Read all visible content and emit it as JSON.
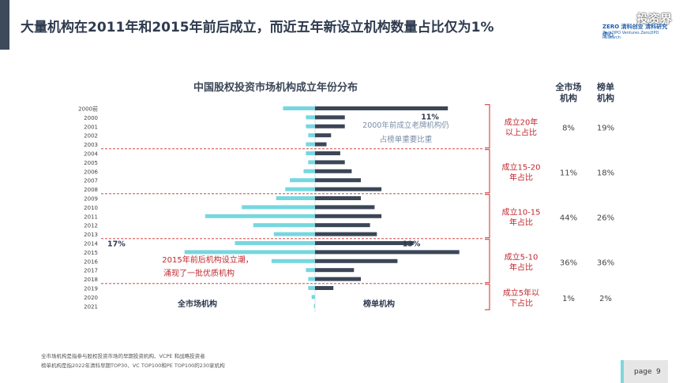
{
  "slide": {
    "title": "大量机构在2011年和2015年前后成立，而近五年新设立机构数量占比仅为1%",
    "page_label": "page",
    "page_number": "9",
    "watermark": "投资界",
    "logo_line1": "ZERO 清科创业 清科研究中心",
    "logo_line2": "Zero2IPO Ventures  Zero2IPO Research"
  },
  "colors": {
    "left_series": "#76d7df",
    "right_series": "#3b4656",
    "divider": "#cc2a2a",
    "group_text": "#c1272d",
    "annotation_blue": "#7b8ea6",
    "annotation_red": "#c1272d"
  },
  "chart_data": {
    "type": "bar",
    "orientation": "horizontal-diverging",
    "title": "中国股权投资市场机构成立年份分布",
    "categories": [
      "2000前",
      "2000",
      "2001",
      "2002",
      "2003",
      "2004",
      "2005",
      "2006",
      "2007",
      "2008",
      "2009",
      "2010",
      "2011",
      "2012",
      "2013",
      "2014",
      "2015",
      "2016",
      "2017",
      "2018",
      "2019",
      "2020",
      "2021"
    ],
    "series": [
      {
        "name": "全市场机构",
        "side": "left",
        "values": [
          1.4,
          0.4,
          0.4,
          0.3,
          0.4,
          0.4,
          0.3,
          0.5,
          1.1,
          1.3,
          1.7,
          3.2,
          4.8,
          2.7,
          1.8,
          3.5,
          5.7,
          1.9,
          0.4,
          0.3,
          0.3,
          0.15,
          0.05
        ]
      },
      {
        "name": "榜单机构",
        "side": "right",
        "values": [
          5.8,
          1.3,
          1.3,
          0.7,
          0.5,
          1.1,
          1.3,
          1.6,
          2.0,
          2.9,
          2.0,
          2.6,
          2.9,
          2.4,
          2.7,
          4.3,
          6.3,
          3.6,
          1.7,
          2.0,
          0.8,
          0.0,
          0.0
        ]
      }
    ],
    "bar_labels": [
      {
        "category": "2000前",
        "series": "榜单机构",
        "text": "11%"
      },
      {
        "category": "2014",
        "series": "全市场机构",
        "text": "17%"
      },
      {
        "category": "2014",
        "series": "榜单机构",
        "text": "13%"
      }
    ],
    "groups": [
      {
        "label_line1": "成立20年",
        "label_line2": "以上占比",
        "from": "2000前",
        "to": "2003",
        "market": "8%",
        "list": "19%"
      },
      {
        "label_line1": "成立15-20",
        "label_line2": "年占比",
        "from": "2004",
        "to": "2008",
        "market": "11%",
        "list": "18%"
      },
      {
        "label_line1": "成立10-15",
        "label_line2": "年占比",
        "from": "2009",
        "to": "2013",
        "market": "44%",
        "list": "26%"
      },
      {
        "label_line1": "成立5-10",
        "label_line2": "年占比",
        "from": "2014",
        "to": "2018",
        "market": "36%",
        "list": "36%"
      },
      {
        "label_line1": "成立5年以",
        "label_line2": "下占比",
        "from": "2019",
        "to": "2021",
        "market": "1%",
        "list": "2%"
      }
    ],
    "column_headers": {
      "market": [
        "全市场",
        "机构"
      ],
      "list": [
        "榜单",
        "机构"
      ]
    },
    "annotations": {
      "old_line1": "2000年前成立老牌机构仍",
      "old_line2": "占榜单重要比重",
      "wave_line1": "2015年前后机构设立潮，",
      "wave_line2": "涌现了一批优质机构"
    },
    "axis_labels": {
      "left": "全市场机构",
      "right": "榜单机构"
    }
  },
  "footnotes": [
    "全市场机构是指参与股权投资市场的早期投资机构、VCPE 和战略投资者",
    "榜单机构是指2022年清科早期TOP30、VC TOP100和PE TOP100的230家机构"
  ]
}
